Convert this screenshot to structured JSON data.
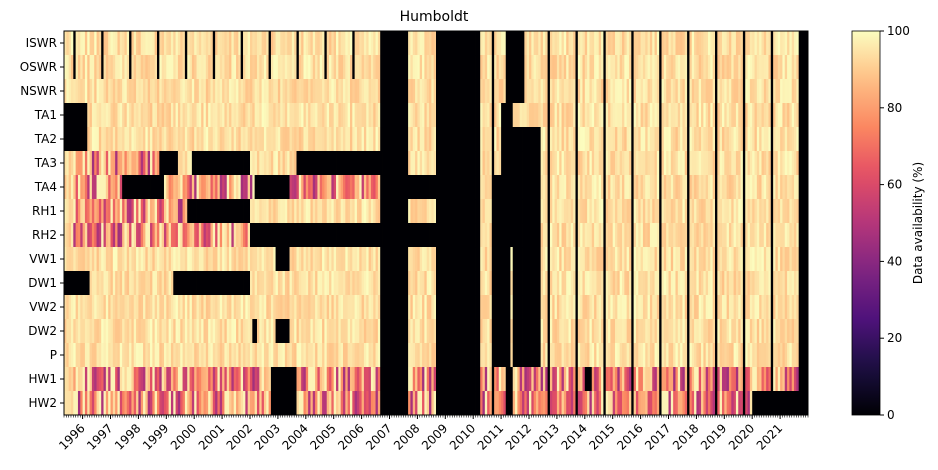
{
  "chart_data": {
    "type": "heatmap",
    "title": "Humboldt",
    "xlabel": "",
    "ylabel": "",
    "colorbar_label": "Data availability (%)",
    "colormap": "magma",
    "vmin": 0,
    "vmax": 100,
    "colorbar_ticks": [
      "0",
      "20",
      "40",
      "60",
      "80",
      "100"
    ],
    "x_start": "1995-05",
    "x_end": "2022-01",
    "x_resolution": "month",
    "x_tick_labels": [
      "1996",
      "1997",
      "1998",
      "1999",
      "2000",
      "2001",
      "2002",
      "2003",
      "2004",
      "2005",
      "2006",
      "2007",
      "2008",
      "2009",
      "2010",
      "2011",
      "2012",
      "2013",
      "2014",
      "2015",
      "2016",
      "2017",
      "2018",
      "2019",
      "2020",
      "2021"
    ],
    "variables": [
      "ISWR",
      "OSWR",
      "NSWR",
      "TA1",
      "TA2",
      "TA3",
      "TA4",
      "RH1",
      "RH2",
      "VW1",
      "DW1",
      "VW2",
      "DW2",
      "P",
      "HW1",
      "HW2"
    ],
    "missing_periods": {
      "all_variables": [
        [
          "2006-09",
          "2007-09"
        ],
        [
          "2008-09",
          "2010-04"
        ]
      ],
      "ISWR": [
        [
          "1995-09",
          "1995-10"
        ],
        [
          "1996-09",
          "1996-10"
        ],
        [
          "1997-09",
          "1997-10"
        ],
        [
          "1998-09",
          "1998-10"
        ],
        [
          "1999-09",
          "1999-10"
        ],
        [
          "2000-09",
          "2000-10"
        ],
        [
          "2001-09",
          "2001-10"
        ],
        [
          "2002-09",
          "2002-10"
        ],
        [
          "2003-09",
          "2003-10"
        ],
        [
          "2004-09",
          "2004-10"
        ],
        [
          "2005-09",
          "2005-10"
        ],
        [
          "2010-09",
          "2010-10"
        ],
        [
          "2011-03",
          "2011-11"
        ],
        [
          "2012-09",
          "2012-10"
        ],
        [
          "2013-09",
          "2013-10"
        ],
        [
          "2014-09",
          "2014-10"
        ],
        [
          "2015-09",
          "2015-10"
        ],
        [
          "2016-09",
          "2016-10"
        ],
        [
          "2017-09",
          "2017-10"
        ],
        [
          "2018-09",
          "2018-10"
        ],
        [
          "2019-09",
          "2019-10"
        ],
        [
          "2020-09",
          "2020-10"
        ],
        [
          "2021-09",
          "2022-01"
        ]
      ],
      "OSWR": [
        [
          "1995-09",
          "1995-10"
        ],
        [
          "1996-09",
          "1996-10"
        ],
        [
          "1997-09",
          "1997-10"
        ],
        [
          "1998-09",
          "1998-10"
        ],
        [
          "1999-09",
          "1999-10"
        ],
        [
          "2000-09",
          "2000-10"
        ],
        [
          "2001-09",
          "2001-10"
        ],
        [
          "2002-09",
          "2002-10"
        ],
        [
          "2003-09",
          "2003-10"
        ],
        [
          "2004-09",
          "2004-10"
        ],
        [
          "2005-09",
          "2005-10"
        ],
        [
          "2010-09",
          "2010-10"
        ],
        [
          "2011-03",
          "2011-11"
        ],
        [
          "2012-09",
          "2012-10"
        ],
        [
          "2013-09",
          "2013-10"
        ],
        [
          "2014-09",
          "2014-10"
        ],
        [
          "2015-09",
          "2015-10"
        ],
        [
          "2016-09",
          "2016-10"
        ],
        [
          "2017-09",
          "2017-10"
        ],
        [
          "2018-09",
          "2018-10"
        ],
        [
          "2019-09",
          "2019-10"
        ],
        [
          "2020-09",
          "2020-10"
        ],
        [
          "2021-09",
          "2022-01"
        ]
      ],
      "NSWR": [
        [
          "2010-09",
          "2010-10"
        ],
        [
          "2011-03",
          "2011-11"
        ],
        [
          "2012-09",
          "2012-10"
        ],
        [
          "2013-09",
          "2013-10"
        ],
        [
          "2014-09",
          "2014-10"
        ],
        [
          "2015-09",
          "2015-10"
        ],
        [
          "2016-09",
          "2016-10"
        ],
        [
          "2017-09",
          "2017-10"
        ],
        [
          "2018-09",
          "2018-10"
        ],
        [
          "2019-09",
          "2019-10"
        ],
        [
          "2020-09",
          "2020-10"
        ],
        [
          "2021-09",
          "2022-01"
        ]
      ],
      "TA1": [
        [
          "1995-05",
          "1996-03"
        ],
        [
          "2010-09",
          "2010-10"
        ],
        [
          "2011-01",
          "2011-06"
        ],
        [
          "2012-09",
          "2012-10"
        ],
        [
          "2013-09",
          "2013-10"
        ],
        [
          "2014-09",
          "2014-10"
        ],
        [
          "2015-09",
          "2015-10"
        ],
        [
          "2016-09",
          "2016-10"
        ],
        [
          "2017-09",
          "2017-10"
        ],
        [
          "2018-09",
          "2018-10"
        ],
        [
          "2019-09",
          "2019-10"
        ],
        [
          "2020-09",
          "2020-10"
        ],
        [
          "2021-09",
          "2022-01"
        ]
      ],
      "TA2": [
        [
          "1995-05",
          "1996-03"
        ],
        [
          "2010-09",
          "2010-10"
        ],
        [
          "2011-01",
          "2012-06"
        ],
        [
          "2012-09",
          "2012-10"
        ],
        [
          "2013-09",
          "2013-10"
        ],
        [
          "2014-09",
          "2014-10"
        ],
        [
          "2015-09",
          "2015-10"
        ],
        [
          "2016-09",
          "2016-10"
        ],
        [
          "2017-09",
          "2017-10"
        ],
        [
          "2018-09",
          "2018-10"
        ],
        [
          "2019-09",
          "2019-10"
        ],
        [
          "2020-09",
          "2020-10"
        ],
        [
          "2021-09",
          "2022-01"
        ]
      ],
      "TA3": [
        [
          "1998-10",
          "1999-06"
        ],
        [
          "1999-12",
          "2002-01"
        ],
        [
          "2003-09",
          "2006-09"
        ],
        [
          "2010-09",
          "2010-10"
        ],
        [
          "2011-01",
          "2012-06"
        ],
        [
          "2012-09",
          "2012-10"
        ],
        [
          "2013-09",
          "2013-10"
        ],
        [
          "2014-09",
          "2014-10"
        ],
        [
          "2015-09",
          "2015-10"
        ],
        [
          "2016-09",
          "2016-10"
        ],
        [
          "2017-09",
          "2017-10"
        ],
        [
          "2018-09",
          "2018-10"
        ],
        [
          "2019-09",
          "2019-10"
        ],
        [
          "2020-09",
          "2020-10"
        ],
        [
          "2021-09",
          "2022-01"
        ]
      ],
      "TA4": [
        [
          "1997-06",
          "1998-12"
        ],
        [
          "2002-03",
          "2003-06"
        ],
        [
          "2007-09",
          "2010-04"
        ],
        [
          "2010-09",
          "2012-06"
        ],
        [
          "2012-09",
          "2012-10"
        ],
        [
          "2013-09",
          "2013-10"
        ],
        [
          "2014-09",
          "2014-10"
        ],
        [
          "2015-09",
          "2015-10"
        ],
        [
          "2016-09",
          "2016-10"
        ],
        [
          "2017-09",
          "2017-10"
        ],
        [
          "2018-09",
          "2018-10"
        ],
        [
          "2019-09",
          "2019-10"
        ],
        [
          "2020-09",
          "2020-10"
        ],
        [
          "2021-09",
          "2022-01"
        ]
      ],
      "RH1": [
        [
          "1999-10",
          "2002-01"
        ],
        [
          "2008-09",
          "2010-04"
        ],
        [
          "2010-09",
          "2012-06"
        ],
        [
          "2012-09",
          "2012-10"
        ],
        [
          "2013-09",
          "2013-10"
        ],
        [
          "2014-09",
          "2014-10"
        ],
        [
          "2015-09",
          "2015-10"
        ],
        [
          "2016-09",
          "2016-10"
        ],
        [
          "2017-09",
          "2017-10"
        ],
        [
          "2018-09",
          "2018-10"
        ],
        [
          "2019-09",
          "2019-10"
        ],
        [
          "2020-09",
          "2020-10"
        ],
        [
          "2021-09",
          "2022-01"
        ]
      ],
      "RH2": [
        [
          "2002-01",
          "2010-04"
        ],
        [
          "2010-09",
          "2012-06"
        ],
        [
          "2012-09",
          "2012-10"
        ],
        [
          "2013-09",
          "2013-10"
        ],
        [
          "2014-09",
          "2014-10"
        ],
        [
          "2015-09",
          "2015-10"
        ],
        [
          "2016-09",
          "2016-10"
        ],
        [
          "2017-09",
          "2017-10"
        ],
        [
          "2018-09",
          "2018-10"
        ],
        [
          "2019-09",
          "2019-10"
        ],
        [
          "2020-09",
          "2020-10"
        ],
        [
          "2021-09",
          "2022-01"
        ]
      ],
      "VW1": [
        [
          "2002-12",
          "2003-06"
        ],
        [
          "2010-09",
          "2011-05"
        ],
        [
          "2011-06",
          "2012-06"
        ],
        [
          "2012-09",
          "2012-10"
        ],
        [
          "2013-09",
          "2013-10"
        ],
        [
          "2014-09",
          "2014-10"
        ],
        [
          "2015-09",
          "2015-10"
        ],
        [
          "2016-09",
          "2016-10"
        ],
        [
          "2017-09",
          "2017-10"
        ],
        [
          "2018-09",
          "2018-10"
        ],
        [
          "2019-09",
          "2019-10"
        ],
        [
          "2020-09",
          "2020-10"
        ],
        [
          "2021-09",
          "2022-01"
        ]
      ],
      "DW1": [
        [
          "1995-05",
          "1996-04"
        ],
        [
          "1999-04",
          "2002-01"
        ],
        [
          "2010-09",
          "2011-05"
        ],
        [
          "2011-06",
          "2012-06"
        ],
        [
          "2012-09",
          "2012-10"
        ],
        [
          "2013-09",
          "2013-10"
        ],
        [
          "2014-09",
          "2014-10"
        ],
        [
          "2015-09",
          "2015-10"
        ],
        [
          "2016-09",
          "2016-10"
        ],
        [
          "2017-09",
          "2017-10"
        ],
        [
          "2018-09",
          "2018-10"
        ],
        [
          "2019-09",
          "2019-10"
        ],
        [
          "2020-09",
          "2020-10"
        ],
        [
          "2021-09",
          "2022-01"
        ]
      ],
      "VW2": [
        [
          "2010-09",
          "2011-05"
        ],
        [
          "2011-06",
          "2012-06"
        ],
        [
          "2012-09",
          "2012-10"
        ],
        [
          "2013-09",
          "2013-10"
        ],
        [
          "2014-09",
          "2014-10"
        ],
        [
          "2015-09",
          "2015-10"
        ],
        [
          "2016-09",
          "2016-10"
        ],
        [
          "2017-09",
          "2017-10"
        ],
        [
          "2018-09",
          "2018-10"
        ],
        [
          "2019-09",
          "2019-10"
        ],
        [
          "2020-09",
          "2020-10"
        ],
        [
          "2021-09",
          "2022-01"
        ]
      ],
      "DW2": [
        [
          "2002-02",
          "2002-04"
        ],
        [
          "2002-12",
          "2003-06"
        ],
        [
          "2010-09",
          "2011-05"
        ],
        [
          "2011-06",
          "2012-06"
        ],
        [
          "2012-09",
          "2012-10"
        ],
        [
          "2013-09",
          "2013-10"
        ],
        [
          "2014-09",
          "2014-10"
        ],
        [
          "2015-09",
          "2015-10"
        ],
        [
          "2016-09",
          "2016-10"
        ],
        [
          "2017-09",
          "2017-10"
        ],
        [
          "2018-09",
          "2018-10"
        ],
        [
          "2019-09",
          "2019-10"
        ],
        [
          "2020-09",
          "2020-10"
        ],
        [
          "2021-09",
          "2022-01"
        ]
      ],
      "P": [
        [
          "2010-09",
          "2011-05"
        ],
        [
          "2011-06",
          "2012-06"
        ],
        [
          "2012-09",
          "2012-10"
        ],
        [
          "2013-09",
          "2013-10"
        ],
        [
          "2014-09",
          "2014-10"
        ],
        [
          "2015-09",
          "2015-10"
        ],
        [
          "2016-09",
          "2016-10"
        ],
        [
          "2017-09",
          "2017-10"
        ],
        [
          "2018-09",
          "2018-10"
        ],
        [
          "2019-09",
          "2019-10"
        ],
        [
          "2020-09",
          "2020-10"
        ],
        [
          "2021-09",
          "2022-01"
        ]
      ],
      "HW1": [
        [
          "2002-10",
          "2003-09"
        ],
        [
          "2010-09",
          "2010-10"
        ],
        [
          "2011-03",
          "2011-06"
        ],
        [
          "2012-09",
          "2012-10"
        ],
        [
          "2013-09",
          "2013-10"
        ],
        [
          "2014-01",
          "2014-04"
        ],
        [
          "2014-09",
          "2014-10"
        ],
        [
          "2015-09",
          "2015-10"
        ],
        [
          "2016-09",
          "2016-10"
        ],
        [
          "2017-09",
          "2017-10"
        ],
        [
          "2018-09",
          "2018-10"
        ],
        [
          "2019-09",
          "2019-10"
        ],
        [
          "2020-09",
          "2020-10"
        ],
        [
          "2021-09",
          "2022-01"
        ]
      ],
      "HW2": [
        [
          "2002-10",
          "2003-09"
        ],
        [
          "2010-09",
          "2010-10"
        ],
        [
          "2011-03",
          "2011-06"
        ],
        [
          "2012-09",
          "2012-10"
        ],
        [
          "2013-09",
          "2013-10"
        ],
        [
          "2014-09",
          "2014-10"
        ],
        [
          "2015-09",
          "2015-10"
        ],
        [
          "2016-09",
          "2016-10"
        ],
        [
          "2017-09",
          "2017-10"
        ],
        [
          "2018-09",
          "2018-10"
        ],
        [
          "2019-09",
          "2019-10"
        ],
        [
          "2020-01",
          "2022-01"
        ]
      ]
    },
    "partial_periods": {
      "TA3": [
        [
          "1995-09",
          "1998-10"
        ]
      ],
      "TA4": [
        [
          "1995-09",
          "1997-06"
        ],
        [
          "1999-01",
          "2002-03"
        ],
        [
          "2003-06",
          "2006-09"
        ]
      ],
      "RH1": [
        [
          "1995-09",
          "1999-10"
        ]
      ],
      "RH2": [
        [
          "1995-09",
          "2002-01"
        ]
      ],
      "HW1": [
        [
          "1995-09",
          "2002-10"
        ],
        [
          "2003-09",
          "2006-09"
        ],
        [
          "2007-09",
          "2008-09"
        ],
        [
          "2010-04",
          "2022-01"
        ]
      ],
      "HW2": [
        [
          "1995-09",
          "2002-10"
        ],
        [
          "2003-09",
          "2006-09"
        ],
        [
          "2007-09",
          "2008-09"
        ],
        [
          "2010-04",
          "2020-01"
        ]
      ]
    }
  }
}
